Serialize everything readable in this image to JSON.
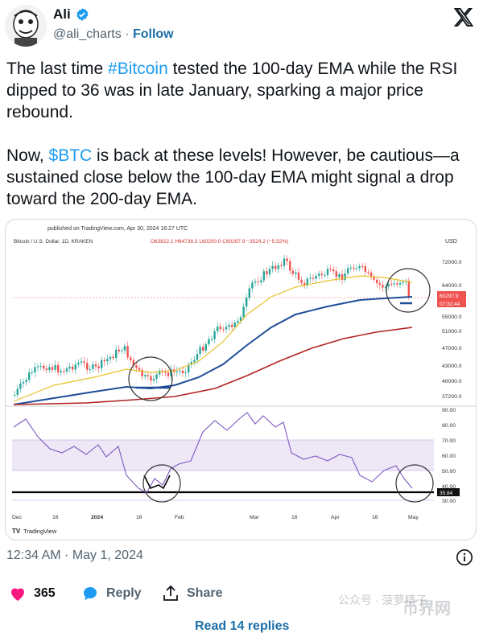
{
  "author": {
    "name": "Ali",
    "handle": "@ali_charts",
    "separator": "·",
    "follow_label": "Follow"
  },
  "tweet": {
    "p1_before": "The last time ",
    "p1_hashtag": "#Bitcoin",
    "p1_after": " tested the 100-day EMA while the RSI dipped to 36 was in late January, sparking a major price rebound.",
    "p2_before": "Now, ",
    "p2_cashtag": "$BTC",
    "p2_after": " is back at these levels! However, be cautious—a sustained close below the 100-day EMA might signal a drop toward the 200-day EMA."
  },
  "chart": {
    "published": "published on TradingView.com, Apr 30, 2024 16:27 UTC",
    "symbol_line": "Bitcoin / U.S. Dollar, 1D, KRAKEN",
    "ohlc": "O63822.1 H64738.3 L60200.0 C60297.9 −3524.2 (−5.52%)",
    "currency": "USD",
    "price_labels": [
      "72000.0",
      "64000.0",
      "55000.0",
      "51000.0",
      "47000.0",
      "43000.0",
      "40000.0",
      "37200.0"
    ],
    "last_price": "60297.9",
    "countdown": "07:32:44",
    "rsi_labels": [
      "90.00",
      "80.00",
      "70.00",
      "60.00",
      "50.00",
      "40.00",
      "30.00"
    ],
    "rsi_value": "35.84",
    "date_labels": [
      "Dec",
      "16",
      "2024",
      "16",
      "Feb",
      "Mar",
      "16",
      "Apr",
      "16",
      "May"
    ],
    "brand": "TradingView",
    "colors": {
      "candle_up": "#26a69a",
      "candle_down": "#ef5350",
      "ema_fast": "#e6c229",
      "ema_100": "#1f4e99",
      "ema_200": "#b22222",
      "rsi_line": "#7e57c2",
      "rsi_band": "#ede7f6"
    }
  },
  "meta": {
    "timestamp": "12:34 AM · May 1, 2024"
  },
  "actions": {
    "like_count": "365",
    "reply_label": "Reply",
    "share_label": "Share"
  },
  "footer": {
    "read_replies": "Read 14 replies"
  },
  "watermark": {
    "text": "公众号 · 菠萝精子",
    "site": "币界网"
  }
}
